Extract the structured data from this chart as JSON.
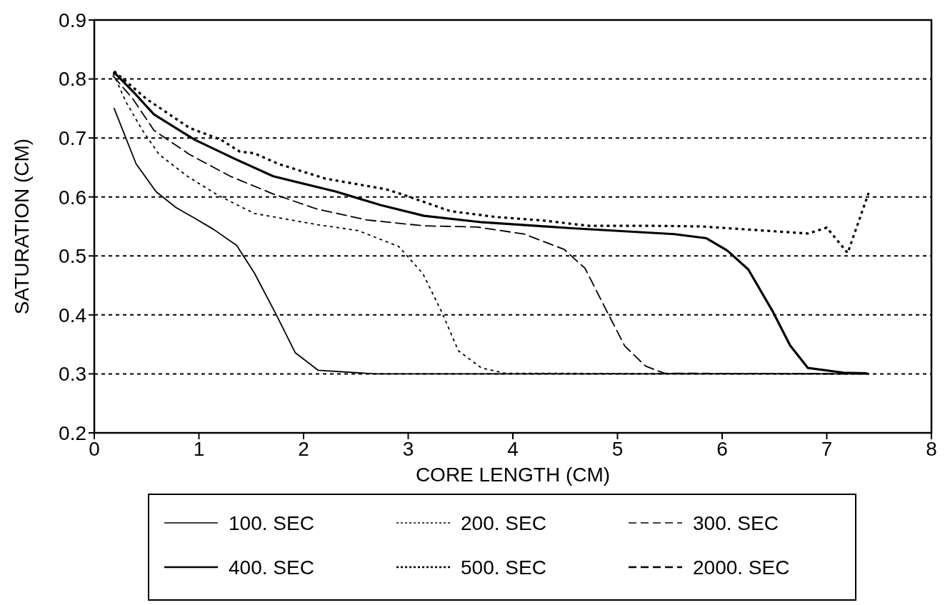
{
  "chart_data": {
    "type": "line",
    "xlabel": "CORE LENGTH (CM)",
    "ylabel": "SATURATION (CM)",
    "xlim": [
      0,
      8
    ],
    "xticks": [
      0,
      1,
      2,
      3,
      4,
      5,
      6,
      7,
      8
    ],
    "ylim": [
      0.2,
      0.9
    ],
    "yticks": [
      0.2,
      0.3,
      0.4,
      0.5,
      0.6,
      0.7,
      0.8,
      0.9
    ],
    "grid": "y",
    "legend": "bottom",
    "series": [
      {
        "name": "100.  SEC",
        "color": "#000000",
        "line_style": "solid",
        "x": [
          0.19,
          0.4,
          0.59,
          0.78,
          0.96,
          1.14,
          1.36,
          1.53,
          1.74,
          1.92,
          2.14,
          2.68,
          7.4
        ],
        "values": [
          0.75,
          0.656,
          0.609,
          0.582,
          0.564,
          0.545,
          0.518,
          0.471,
          0.4,
          0.336,
          0.306,
          0.3,
          0.3
        ]
      },
      {
        "name": "200.  SEC",
        "color": "#000000",
        "line_style": "dotted",
        "x": [
          0.18,
          0.3,
          0.46,
          0.62,
          0.89,
          1.19,
          1.53,
          2.13,
          2.52,
          2.91,
          3.14,
          3.32,
          3.48,
          3.7,
          3.93,
          7.4
        ],
        "values": [
          0.81,
          0.762,
          0.713,
          0.672,
          0.635,
          0.602,
          0.572,
          0.553,
          0.543,
          0.516,
          0.47,
          0.405,
          0.339,
          0.31,
          0.301,
          0.3
        ]
      },
      {
        "name": "300.  SEC",
        "color": "#000000",
        "line_style": "dashed",
        "x": [
          0.18,
          0.37,
          0.57,
          0.91,
          1.3,
          1.71,
          2.12,
          2.6,
          3.15,
          3.66,
          4.11,
          4.49,
          4.69,
          4.91,
          5.07,
          5.27,
          5.45,
          7.4
        ],
        "values": [
          0.805,
          0.766,
          0.713,
          0.672,
          0.635,
          0.605,
          0.58,
          0.561,
          0.551,
          0.549,
          0.537,
          0.511,
          0.479,
          0.402,
          0.347,
          0.313,
          0.301,
          0.3
        ]
      },
      {
        "name": "400.  SEC",
        "color": "#000000",
        "line_style": "solid",
        "x": [
          0.19,
          0.39,
          0.57,
          0.96,
          1.35,
          1.71,
          2.31,
          2.74,
          3.15,
          3.71,
          4.22,
          4.56,
          5.54,
          5.85,
          6.05,
          6.25,
          6.48,
          6.65,
          6.82,
          7.16,
          7.38
        ],
        "values": [
          0.811,
          0.775,
          0.74,
          0.697,
          0.664,
          0.635,
          0.609,
          0.586,
          0.568,
          0.557,
          0.551,
          0.547,
          0.537,
          0.53,
          0.509,
          0.477,
          0.407,
          0.348,
          0.31,
          0.302,
          0.301
        ]
      },
      {
        "name": "500.  SEC",
        "color": "#000000",
        "line_style": "dotted",
        "x": [
          0.19,
          0.5,
          0.91,
          1.21,
          1.39,
          1.53,
          1.76,
          2.21,
          2.79,
          2.95,
          3.4,
          3.84,
          4.29,
          4.73,
          5.35,
          5.8,
          6.48,
          6.82,
          7.0,
          7.2,
          7.4
        ],
        "values": [
          0.813,
          0.766,
          0.717,
          0.697,
          0.677,
          0.674,
          0.656,
          0.631,
          0.613,
          0.604,
          0.576,
          0.566,
          0.56,
          0.551,
          0.551,
          0.55,
          0.542,
          0.538,
          0.548,
          0.505,
          0.607
        ]
      },
      {
        "name": "2000.  SEC",
        "color": "#000000",
        "line_style": "dashed"
      }
    ]
  }
}
